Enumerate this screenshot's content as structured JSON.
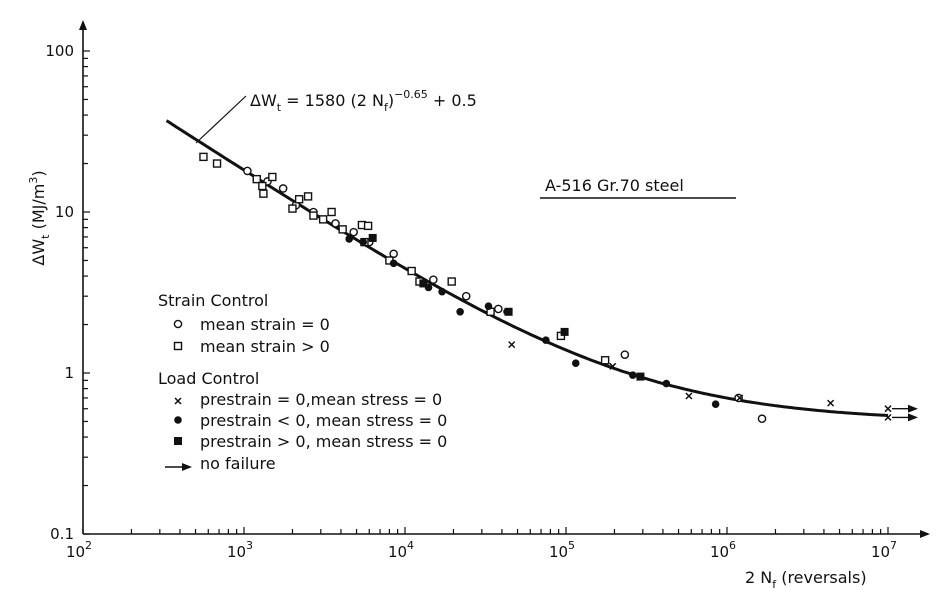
{
  "chart_data": {
    "type": "scatter",
    "x_scale": "log",
    "y_scale": "log",
    "xlim": [
      100,
      10000000
    ],
    "ylim": [
      0.1,
      100
    ],
    "x_ticks": [
      {
        "value": 100,
        "base": "10",
        "exp": "2"
      },
      {
        "value": 1000,
        "base": "10",
        "exp": "3"
      },
      {
        "value": 10000,
        "base": "10",
        "exp": "4"
      },
      {
        "value": 100000,
        "base": "10",
        "exp": "5"
      },
      {
        "value": 1000000,
        "base": "10",
        "exp": "6"
      },
      {
        "value": 10000000,
        "base": "10",
        "exp": "7"
      }
    ],
    "y_ticks": [
      {
        "value": 0.1,
        "label": "0.1"
      },
      {
        "value": 1,
        "label": "1"
      },
      {
        "value": 10,
        "label": "10"
      },
      {
        "value": 100,
        "label": "100"
      }
    ],
    "xlabel": "2 Nf (reversals)",
    "xlabel_main": "2 N",
    "xlabel_sub": "f",
    "xlabel_tail": " (reversals)",
    "ylabel": "ΔWt (MJ/m3)",
    "ylabel_parts": {
      "delta": "ΔW",
      "sub": "t",
      "open": " (MJ/m",
      "sup": "3",
      "close": ")"
    },
    "material_label": "A-516  Gr.70 steel",
    "fit": {
      "equation": "ΔWt = 1580 (2Nf)^-0.65 + 0.5",
      "eq_parts": {
        "lhs": "ΔW",
        "lhs_sub": "t",
        "mid": " = 1580 (2 N",
        "mid_sub": "f",
        "close": ")",
        "exp": "−0.65",
        "tail": " + 0.5"
      },
      "coef": 1580,
      "exponent": -0.65,
      "offset": 0.5,
      "x_range": [
        330,
        10000000
      ]
    },
    "legend": {
      "strain_title": "Strain Control",
      "load_title": "Load Control",
      "entries": {
        "strain_zero": "mean strain = 0",
        "strain_pos": "mean strain > 0",
        "pre_zero": "prestrain = 0,mean stress = 0",
        "pre_neg": "prestrain < 0, mean stress = 0",
        "pre_pos": "prestrain > 0, mean stress = 0",
        "no_failure": "no failure"
      }
    },
    "series": [
      {
        "key": "strain_zero",
        "marker": "open-circle",
        "points": [
          [
            1050,
            18
          ],
          [
            1400,
            15.5
          ],
          [
            1750,
            14
          ],
          [
            2100,
            11
          ],
          [
            2700,
            10
          ],
          [
            3700,
            8.5
          ],
          [
            4800,
            7.5
          ],
          [
            6000,
            6.5
          ],
          [
            8500,
            5.5
          ],
          [
            15000,
            3.8
          ],
          [
            24000,
            3
          ],
          [
            38000,
            2.5
          ],
          [
            232000,
            1.3
          ],
          [
            1180000,
            0.7
          ],
          [
            1650000,
            0.52
          ]
        ]
      },
      {
        "key": "strain_pos",
        "marker": "open-square",
        "points": [
          [
            560,
            22
          ],
          [
            680,
            20
          ],
          [
            1200,
            16
          ],
          [
            1300,
            14.5
          ],
          [
            1320,
            13
          ],
          [
            1500,
            16.5
          ],
          [
            2000,
            10.5
          ],
          [
            2200,
            12
          ],
          [
            2500,
            12.5
          ],
          [
            2700,
            9.5
          ],
          [
            3100,
            9
          ],
          [
            3500,
            10
          ],
          [
            4100,
            7.8
          ],
          [
            5400,
            8.3
          ],
          [
            5900,
            8.2
          ],
          [
            5600,
            6.5
          ],
          [
            8000,
            5
          ],
          [
            11000,
            4.3
          ],
          [
            12300,
            3.7
          ],
          [
            19500,
            3.7
          ],
          [
            34000,
            2.4
          ],
          [
            93000,
            1.7
          ],
          [
            175000,
            1.2
          ]
        ]
      },
      {
        "key": "pre_zero",
        "marker": "cross",
        "points": [
          [
            46000,
            1.5
          ],
          [
            195000,
            1.1
          ],
          [
            580000,
            0.72
          ],
          [
            1200000,
            0.7
          ],
          [
            4400000,
            0.65
          ],
          [
            10000000,
            0.6
          ],
          [
            10000000,
            0.53
          ]
        ]
      },
      {
        "key": "pre_neg",
        "marker": "filled-circle",
        "points": [
          [
            4500,
            6.8
          ],
          [
            5500,
            6.5
          ],
          [
            8500,
            4.8
          ],
          [
            14000,
            3.4
          ],
          [
            17000,
            3.2
          ],
          [
            22000,
            2.4
          ],
          [
            33000,
            2.6
          ],
          [
            43000,
            2.4
          ],
          [
            75000,
            1.6
          ],
          [
            115000,
            1.15
          ],
          [
            260000,
            0.97
          ],
          [
            420000,
            0.86
          ],
          [
            850000,
            0.64
          ]
        ]
      },
      {
        "key": "pre_pos",
        "marker": "filled-square",
        "points": [
          [
            6300,
            6.9
          ],
          [
            13000,
            3.6
          ],
          [
            44000,
            2.4
          ],
          [
            98000,
            1.8
          ],
          [
            290000,
            0.95
          ]
        ]
      }
    ],
    "no_failure_points": [
      [
        10000000,
        0.6
      ],
      [
        10000000,
        0.53
      ]
    ],
    "grid": false,
    "legend_placement": "lower-left"
  }
}
